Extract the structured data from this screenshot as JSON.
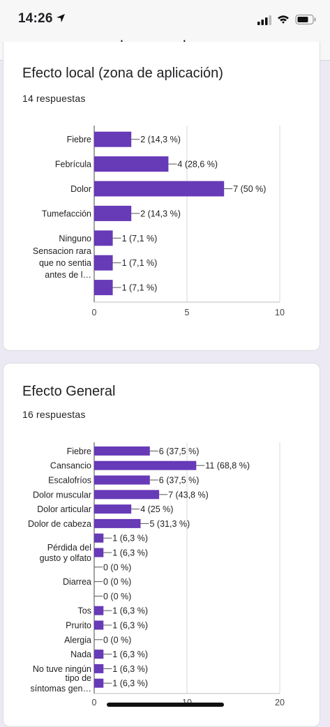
{
  "status_bar": {
    "time": "14:26"
  },
  "browser": {
    "url": "docs.google.com"
  },
  "cards": [
    {
      "title": "Efecto local (zona de aplicación)",
      "responses": "14 respuestas"
    },
    {
      "title": "Efecto General",
      "responses": "16 respuestas"
    }
  ],
  "chart_data": [
    {
      "type": "bar",
      "orientation": "horizontal",
      "categories": [
        [
          "Fiebre"
        ],
        [
          "Febrícula"
        ],
        [
          "Dolor"
        ],
        [
          "Tumefacción"
        ],
        [
          "Ninguno"
        ],
        [
          "Sensacion rara",
          "que no sentia",
          "antes de l…"
        ],
        []
      ],
      "values": [
        2,
        4,
        7,
        2,
        1,
        1,
        1
      ],
      "data_labels": [
        "2 (14,3 %)",
        "4 (28,6 %)",
        "7 (50 %)",
        "2 (14,3 %)",
        "1 (7,1 %)",
        "1 (7,1 %)",
        "1 (7,1 %)"
      ],
      "xticks": [
        "0",
        "5",
        "10"
      ],
      "xlim": [
        0,
        10
      ],
      "grid": true,
      "color": "#673ab7"
    },
    {
      "type": "bar",
      "orientation": "horizontal",
      "categories": [
        [
          "Fiebre"
        ],
        [
          "Cansancio"
        ],
        [
          "Escalofríos"
        ],
        [
          "Dolor muscular"
        ],
        [
          "Dolor articular"
        ],
        [
          "Dolor de cabeza"
        ],
        [],
        [
          "Pérdida del",
          "gusto y olfato"
        ],
        [],
        [
          "Diarrea"
        ],
        [],
        [
          "Tos"
        ],
        [
          "Prurito"
        ],
        [
          "Alergia"
        ],
        [
          "Nada"
        ],
        [
          "No tuve ningún"
        ],
        [
          "tipo de",
          "síntomas gen…"
        ]
      ],
      "values": [
        6,
        11,
        6,
        7,
        4,
        5,
        1,
        1,
        0,
        0,
        0,
        1,
        1,
        0,
        1,
        1,
        1
      ],
      "data_labels": [
        "6 (37,5 %)",
        "11 (68,8 %)",
        "6 (37,5 %)",
        "7 (43,8 %)",
        "4 (25 %)",
        "5 (31,3 %)",
        "1 (6,3 %)",
        "1 (6,3 %)",
        "0 (0 %)",
        "0 (0 %)",
        "0 (0 %)",
        "1 (6,3 %)",
        "1 (6,3 %)",
        "0 (0 %)",
        "1 (6,3 %)",
        "1 (6,3 %)",
        "1 (6,3 %)"
      ],
      "xticks": [
        "0",
        "10",
        "20"
      ],
      "xlim": [
        0,
        20
      ],
      "grid": true,
      "color": "#673ab7"
    }
  ]
}
